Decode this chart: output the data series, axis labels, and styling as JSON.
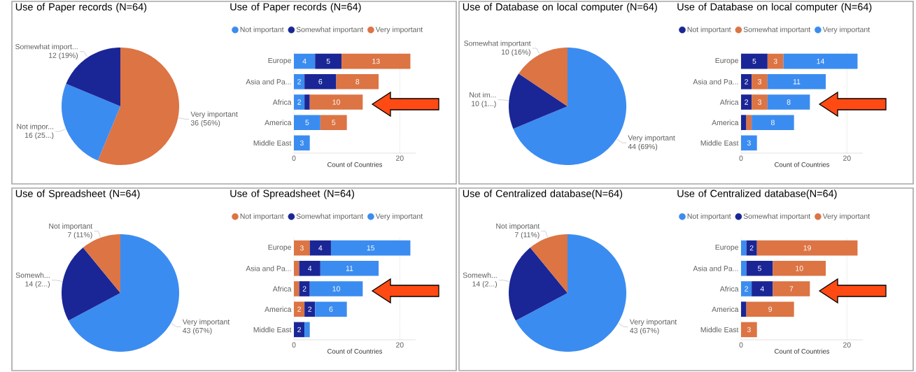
{
  "chart_data": [
    {
      "type": "pie",
      "title": "Use of Paper records (N=64)",
      "categories": [
        "Very important",
        "Not impor...",
        "Somewhat import..."
      ],
      "values": [
        36,
        16,
        12
      ],
      "colors": [
        "#dc7444",
        "#3b8cf0",
        "#1a2696"
      ],
      "value_labels": [
        "36 (56%)",
        "16 (25...)",
        "12 (19%)"
      ]
    },
    {
      "type": "bar",
      "title": "Use of Paper records (N=64)",
      "orientation": "horizontal",
      "stacked": true,
      "categories": [
        "Europe",
        "Asia and Pa...",
        "Africa",
        "America",
        "Middle East"
      ],
      "series": [
        {
          "name": "Not important",
          "color": "#3b8cf0",
          "values": [
            4,
            2,
            2,
            5,
            3
          ],
          "value_labels": [
            "4",
            "2",
            "2",
            "5",
            "3"
          ]
        },
        {
          "name": "Somewhat important",
          "color": "#1a2696",
          "values": [
            5,
            6,
            1,
            null,
            null
          ],
          "value_labels": [
            "5",
            "6",
            null,
            null,
            null
          ]
        },
        {
          "name": "Very important",
          "color": "#dc7444",
          "values": [
            13,
            8,
            10,
            5,
            null
          ],
          "value_labels": [
            "13",
            "8",
            "10",
            "5",
            null
          ]
        }
      ],
      "xlim": [
        0,
        23
      ],
      "xticks": [
        0,
        20
      ],
      "xlabel": "Count of Countries",
      "grid": "x",
      "legend": "top"
    },
    {
      "type": "pie",
      "title": "Use of Database on local computer (N=64)",
      "categories": [
        "Very important",
        "Not im...",
        "Somewhat important"
      ],
      "values": [
        44,
        10,
        10
      ],
      "colors": [
        "#3b8cf0",
        "#1a2696",
        "#dc7444"
      ],
      "value_labels": [
        "44 (69%)",
        "10 (1...)",
        "10 (16%)"
      ]
    },
    {
      "type": "bar",
      "title": "Use of Database on local computer (N=64)",
      "orientation": "horizontal",
      "stacked": true,
      "categories": [
        "Europe",
        "Asia and Pa...",
        "Africa",
        "America",
        "Middle East"
      ],
      "series": [
        {
          "name": "Not important",
          "color": "#1a2696",
          "values": [
            5,
            2,
            2,
            1,
            null
          ],
          "value_labels": [
            "5",
            "2",
            "2",
            null,
            null
          ]
        },
        {
          "name": "Somewhat important",
          "color": "#dc7444",
          "values": [
            3,
            3,
            3,
            1,
            null
          ],
          "value_labels": [
            "3",
            "3",
            "3",
            null,
            null
          ]
        },
        {
          "name": "Very important",
          "color": "#3b8cf0",
          "values": [
            14,
            11,
            8,
            8,
            3
          ],
          "value_labels": [
            "14",
            "11",
            "8",
            "8",
            "3"
          ]
        }
      ],
      "xlim": [
        0,
        23
      ],
      "xticks": [
        0,
        20
      ],
      "xlabel": "Count of Countries",
      "grid": "x",
      "legend": "top"
    },
    {
      "type": "pie",
      "title": "Use of Spreadsheet (N=64)",
      "categories": [
        "Very important",
        "Somewh...",
        "Not important"
      ],
      "values": [
        43,
        14,
        7
      ],
      "colors": [
        "#3b8cf0",
        "#1a2696",
        "#dc7444"
      ],
      "value_labels": [
        "43 (67%)",
        "14 (2...)",
        "7 (11%)"
      ]
    },
    {
      "type": "bar",
      "title": "Use of Spreadsheet (N=64)",
      "orientation": "horizontal",
      "stacked": true,
      "categories": [
        "Europe",
        "Asia and Pa...",
        "Africa",
        "America",
        "Middle East"
      ],
      "series": [
        {
          "name": "Not important",
          "color": "#dc7444",
          "values": [
            3,
            1,
            1,
            2,
            null
          ],
          "value_labels": [
            "3",
            null,
            null,
            "2",
            null
          ]
        },
        {
          "name": "Somewhat important",
          "color": "#1a2696",
          "values": [
            4,
            4,
            2,
            2,
            2
          ],
          "value_labels": [
            "4",
            "4",
            "2",
            "2",
            "2"
          ]
        },
        {
          "name": "Very important",
          "color": "#3b8cf0",
          "values": [
            15,
            11,
            10,
            6,
            1
          ],
          "value_labels": [
            "15",
            "11",
            "10",
            "6",
            null
          ]
        }
      ],
      "xlim": [
        0,
        23
      ],
      "xticks": [
        0,
        20
      ],
      "xlabel": "Count of Countries",
      "grid": "x",
      "legend": "top"
    },
    {
      "type": "pie",
      "title": "Use of Centralized database(N=64)",
      "categories": [
        "Very important",
        "Somewh...",
        "Not important"
      ],
      "values": [
        43,
        14,
        7
      ],
      "colors": [
        "#3b8cf0",
        "#1a2696",
        "#dc7444"
      ],
      "value_labels": [
        "43 (67%)",
        "14 (2...)",
        "7 (11%)"
      ]
    },
    {
      "type": "bar",
      "title": "Use of Centralized database(N=64)",
      "orientation": "horizontal",
      "stacked": true,
      "categories": [
        "Europe",
        "Asia and Pa...",
        "Africa",
        "America",
        "Middle East"
      ],
      "series": [
        {
          "name": "Not important",
          "color": "#3b8cf0",
          "values": [
            1,
            1,
            2,
            null,
            null
          ],
          "value_labels": [
            null,
            null,
            "2",
            null,
            null
          ]
        },
        {
          "name": "Somewhat important",
          "color": "#1a2696",
          "values": [
            2,
            5,
            4,
            1,
            null
          ],
          "value_labels": [
            "2",
            "5",
            "4",
            null,
            null
          ]
        },
        {
          "name": "Very important",
          "color": "#dc7444",
          "values": [
            19,
            10,
            7,
            9,
            3
          ],
          "value_labels": [
            "19",
            "10",
            "7",
            "9",
            "3"
          ]
        }
      ],
      "xlim": [
        0,
        23
      ],
      "xticks": [
        0,
        20
      ],
      "xlabel": "Count of Countries",
      "grid": "x",
      "legend": "top"
    }
  ]
}
